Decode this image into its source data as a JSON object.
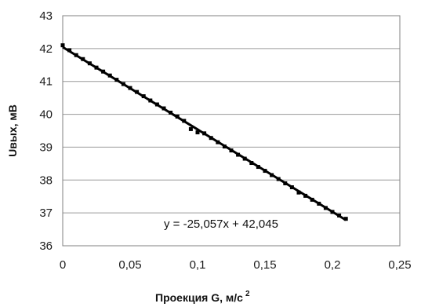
{
  "chart_data": {
    "type": "scatter",
    "xlabel": "Проекция G, м/с",
    "xlabel_sup": "2",
    "ylabel": "Uвых, мВ",
    "xlim": [
      0,
      0.25
    ],
    "ylim": [
      36,
      43
    ],
    "x_ticks": [
      {
        "value": 0,
        "label": "0"
      },
      {
        "value": 0.05,
        "label": "0,05"
      },
      {
        "value": 0.1,
        "label": "0,1"
      },
      {
        "value": 0.15,
        "label": "0,15"
      },
      {
        "value": 0.2,
        "label": "0,2"
      },
      {
        "value": 0.25,
        "label": "0,25"
      }
    ],
    "y_ticks": [
      {
        "value": 36,
        "label": "36"
      },
      {
        "value": 37,
        "label": "37"
      },
      {
        "value": 38,
        "label": "38"
      },
      {
        "value": 39,
        "label": "39"
      },
      {
        "value": 40,
        "label": "40"
      },
      {
        "value": 41,
        "label": "41"
      },
      {
        "value": 42,
        "label": "42"
      },
      {
        "value": 43,
        "label": "43"
      }
    ],
    "grid": "horizontal",
    "series": [
      {
        "x": [
          0,
          0.005,
          0.01,
          0.015,
          0.02,
          0.025,
          0.03,
          0.035,
          0.04,
          0.045,
          0.05,
          0.055,
          0.06,
          0.065,
          0.07,
          0.075,
          0.08,
          0.085,
          0.09,
          0.095,
          0.1,
          0.105,
          0.11,
          0.115,
          0.12,
          0.125,
          0.13,
          0.135,
          0.14,
          0.145,
          0.15,
          0.155,
          0.16,
          0.165,
          0.17,
          0.175,
          0.18,
          0.185,
          0.19,
          0.195,
          0.2,
          0.205,
          0.21
        ],
        "y": [
          42.1,
          41.95,
          41.8,
          41.68,
          41.55,
          41.42,
          41.3,
          41.18,
          41.05,
          40.92,
          40.8,
          40.68,
          40.55,
          40.42,
          40.3,
          40.18,
          40.05,
          39.93,
          39.8,
          39.55,
          39.45,
          39.42,
          39.28,
          39.15,
          39.02,
          38.9,
          38.77,
          38.65,
          38.52,
          38.4,
          38.28,
          38.15,
          38.03,
          37.9,
          37.78,
          37.62,
          37.52,
          37.4,
          37.28,
          37.15,
          37.03,
          36.92,
          36.82
        ]
      }
    ],
    "trendline": {
      "slope": -25.057,
      "intercept": 42.045,
      "x_range": [
        0,
        0.21
      ],
      "equation": "y = -25,057x + 42,045"
    }
  }
}
